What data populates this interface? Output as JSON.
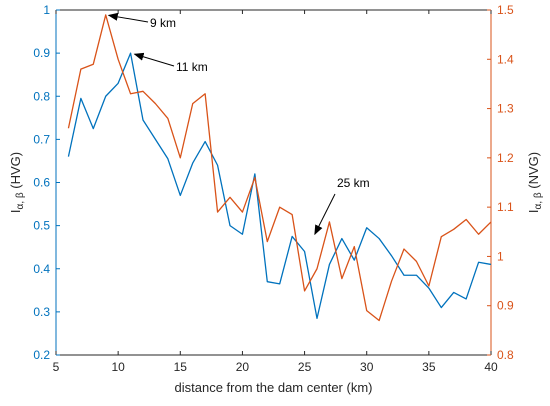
{
  "chart_data": {
    "type": "line",
    "xlabel": "distance from the dam center (km)",
    "ylabel_left": {
      "main": "I",
      "sub": "α, β",
      "tail": " (HVG)"
    },
    "ylabel_right": {
      "main": "I",
      "sub": "α, β",
      "tail": " (NVG)"
    },
    "xlim": [
      5,
      40
    ],
    "ylim_left": [
      0.2,
      1
    ],
    "ylim_right": [
      0.8,
      1.5
    ],
    "xticks": [
      5,
      10,
      15,
      20,
      25,
      30,
      35,
      40
    ],
    "yticks_left": [
      0.2,
      0.3,
      0.4,
      0.5,
      0.6,
      0.7,
      0.8,
      0.9,
      1
    ],
    "yticks_right": [
      0.8,
      0.9,
      1,
      1.1,
      1.2,
      1.3,
      1.4,
      1.5
    ],
    "ytick_labels_left": [
      "0.2",
      "0.3",
      "0.4",
      "0.5",
      "0.6",
      "0.7",
      "0.8",
      "0.9",
      "1"
    ],
    "ytick_labels_right": [
      "0.8",
      "0.9",
      "1",
      "1.1",
      "1.2",
      "1.3",
      "1.4",
      "1.5"
    ],
    "grid": false,
    "series": [
      {
        "axis": "left",
        "color": "#0072BD",
        "x": [
          6,
          7,
          8,
          9,
          10,
          11,
          12,
          13,
          14,
          15,
          16,
          17,
          18,
          19,
          20,
          21,
          22,
          23,
          24,
          25,
          26,
          27,
          28,
          29,
          30,
          31,
          32,
          33,
          34,
          35,
          36,
          37,
          38,
          39,
          40
        ],
        "values": [
          0.66,
          0.795,
          0.725,
          0.8,
          0.83,
          0.9,
          0.745,
          0.7,
          0.655,
          0.57,
          0.645,
          0.695,
          0.64,
          0.5,
          0.48,
          0.62,
          0.37,
          0.365,
          0.475,
          0.44,
          0.285,
          0.41,
          0.47,
          0.42,
          0.495,
          0.47,
          0.43,
          0.385,
          0.385,
          0.355,
          0.31,
          0.345,
          0.33,
          0.415,
          0.41
        ]
      },
      {
        "axis": "right",
        "color": "#D95319",
        "x": [
          6,
          7,
          8,
          9,
          10,
          11,
          12,
          13,
          14,
          15,
          16,
          17,
          18,
          19,
          20,
          21,
          22,
          23,
          24,
          25,
          26,
          27,
          28,
          29,
          30,
          31,
          32,
          33,
          34,
          35,
          36,
          37,
          38,
          39,
          40
        ],
        "values": [
          1.26,
          1.38,
          1.39,
          1.49,
          1.4,
          1.33,
          1.335,
          1.31,
          1.28,
          1.2,
          1.31,
          1.33,
          1.09,
          1.12,
          1.09,
          1.16,
          1.03,
          1.1,
          1.085,
          0.93,
          0.975,
          1.07,
          0.955,
          1.02,
          0.89,
          0.87,
          0.95,
          1.015,
          0.99,
          0.94,
          1.04,
          1.055,
          1.075,
          1.045,
          1.07
        ]
      }
    ],
    "annotations": [
      {
        "text": "9 km",
        "x": 9,
        "y": 0.99,
        "axis": "left"
      },
      {
        "text": "11 km",
        "x": 11,
        "y": 0.9,
        "axis": "left"
      },
      {
        "text": "25 km",
        "x": 25.5,
        "y": 0.48,
        "axis": "left"
      }
    ]
  }
}
